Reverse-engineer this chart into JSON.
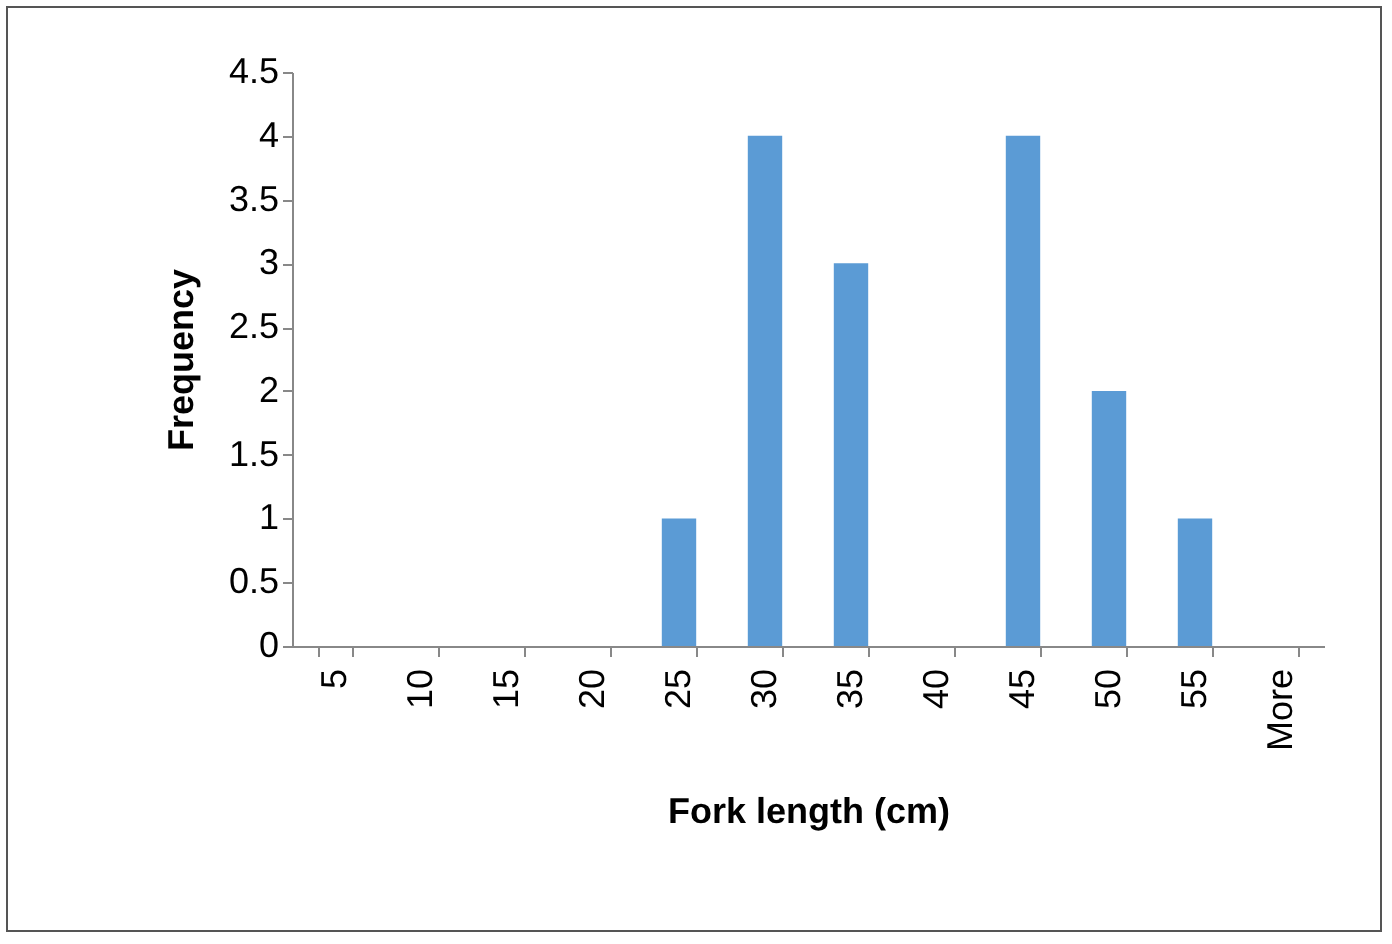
{
  "chart_data": {
    "type": "bar",
    "xlabel": "Fork length (cm)",
    "ylabel": "Frequency",
    "categories": [
      "5",
      "10",
      "15",
      "20",
      "25",
      "30",
      "35",
      "40",
      "45",
      "50",
      "55",
      "More"
    ],
    "values": [
      0,
      0,
      0,
      0,
      1,
      4,
      3,
      0,
      4,
      2,
      1,
      0
    ],
    "color": "#5b9bd5",
    "ylim": [
      0,
      4.5
    ],
    "yticks": [
      0,
      0.5,
      1,
      1.5,
      2,
      2.5,
      3,
      3.5,
      4,
      4.5
    ],
    "grid": false
  }
}
